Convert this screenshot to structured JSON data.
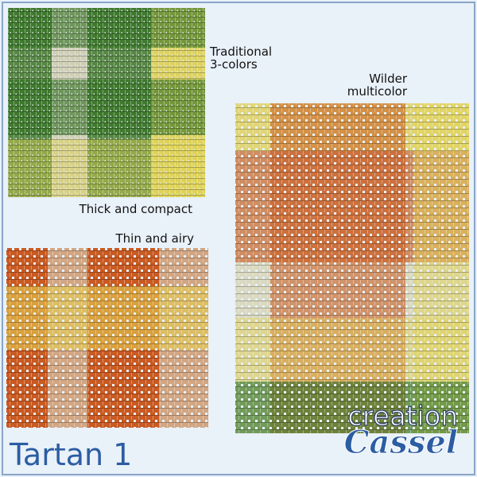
{
  "captions": {
    "traditional": "Traditional",
    "traditional_sub": "3-colors",
    "wilder": "Wilder",
    "wilder_sub": "multicolor",
    "thick": "Thick and compact",
    "thin": "Thin and airy"
  },
  "title": "Tartan 1",
  "logo": {
    "line1": "creation",
    "line2": "Cassel"
  }
}
